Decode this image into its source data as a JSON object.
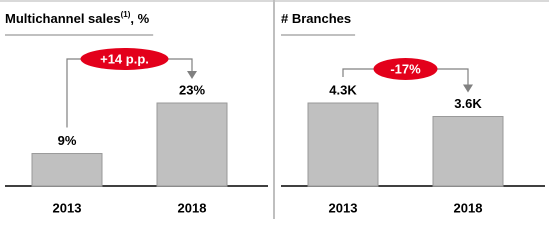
{
  "chart_data": [
    {
      "type": "bar",
      "title": "Multichannel sales",
      "title_superscript": "(1)",
      "title_suffix": ", %",
      "categories": [
        "2013",
        "2018"
      ],
      "values": [
        9,
        23
      ],
      "value_labels": [
        "9%",
        "23%"
      ],
      "color": "#c0c0c0",
      "annotation": "+14 p.p.",
      "annotation_color": "#e3001b"
    },
    {
      "type": "bar",
      "title": "# Branches",
      "categories": [
        "2013",
        "2018"
      ],
      "values": [
        4300,
        3600
      ],
      "value_labels": [
        "4.3K",
        "3.6K"
      ],
      "color": "#c0c0c0",
      "annotation": "-17%",
      "annotation_color": "#e3001b"
    }
  ]
}
